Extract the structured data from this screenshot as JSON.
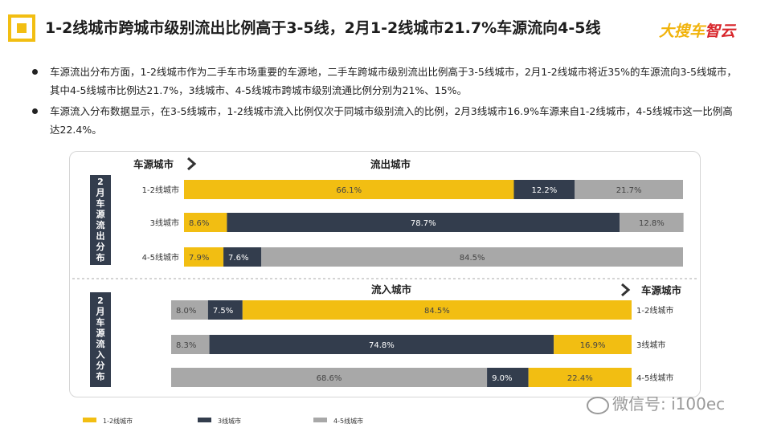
{
  "header": {
    "title": "1-2线城市跨城市级别流出比例高于3-5线，2月1-2线城市21.7%车源流向4-5线",
    "brand_main": "大搜车",
    "brand_accent": "智云"
  },
  "bullets": [
    "车源流出分布方面，1-2线城市作为二手车市场重要的车源地，二手车跨城市级别流出比例高于3-5线城市，2月1-2线城市将近35%的车源流向3-5线城市，其中4-5线城市比例达21.7%，3线城市、4-5线城市跨城市级别流通比例分别为21%、15%。",
    "车源流入分布数据显示，在3-5线城市，1-2线城市流入比例仅次于同城市级别流入的比例，2月3线城市16.9%车源来自1-2线城市，4-5线城市这一比例高达22.4%。"
  ],
  "watermark": "微信号: i100ec",
  "colors": {
    "tier12": "#f2be12",
    "tier3": "#333d4d",
    "tier45": "#a8a8a8"
  },
  "chart_data": [
    {
      "type": "bar",
      "stacked": true,
      "orientation": "horizontal",
      "section_label": "2月车源流出分布",
      "row_header": "车源城市",
      "column_header": "流出城市",
      "categories": [
        "1-2线城市",
        "3线城市",
        "4-5线城市"
      ],
      "series": [
        {
          "name": "1-2线城市",
          "values": [
            66.1,
            8.6,
            7.9
          ]
        },
        {
          "name": "3线城市",
          "values": [
            12.2,
            78.7,
            7.6
          ]
        },
        {
          "name": "4-5线城市",
          "values": [
            21.7,
            12.8,
            84.5
          ]
        }
      ],
      "value_labels": [
        [
          "66.1%",
          "12.2%",
          "21.7%"
        ],
        [
          "8.6%",
          "78.7%",
          "12.8%"
        ],
        [
          "7.9%",
          "7.6%",
          "84.5%"
        ]
      ]
    },
    {
      "type": "bar",
      "stacked": true,
      "orientation": "horizontal",
      "section_label": "2月车源流入分布",
      "row_header": "车源城市",
      "column_header": "流入城市",
      "categories": [
        "1-2线城市",
        "3线城市",
        "4-5线城市"
      ],
      "series": [
        {
          "name": "4-5线城市",
          "values": [
            8.0,
            8.3,
            68.6
          ]
        },
        {
          "name": "3线城市",
          "values": [
            7.5,
            74.8,
            9.0
          ]
        },
        {
          "name": "1-2线城市",
          "values": [
            84.5,
            16.9,
            22.4
          ]
        }
      ],
      "value_labels": [
        [
          "8.0%",
          "7.5%",
          "84.5%"
        ],
        [
          "8.3%",
          "74.8%",
          "16.9%"
        ],
        [
          "68.6%",
          "9.0%",
          "22.4%"
        ]
      ]
    }
  ],
  "legend": [
    "1-2线城市",
    "3线城市",
    "4-5线城市"
  ]
}
